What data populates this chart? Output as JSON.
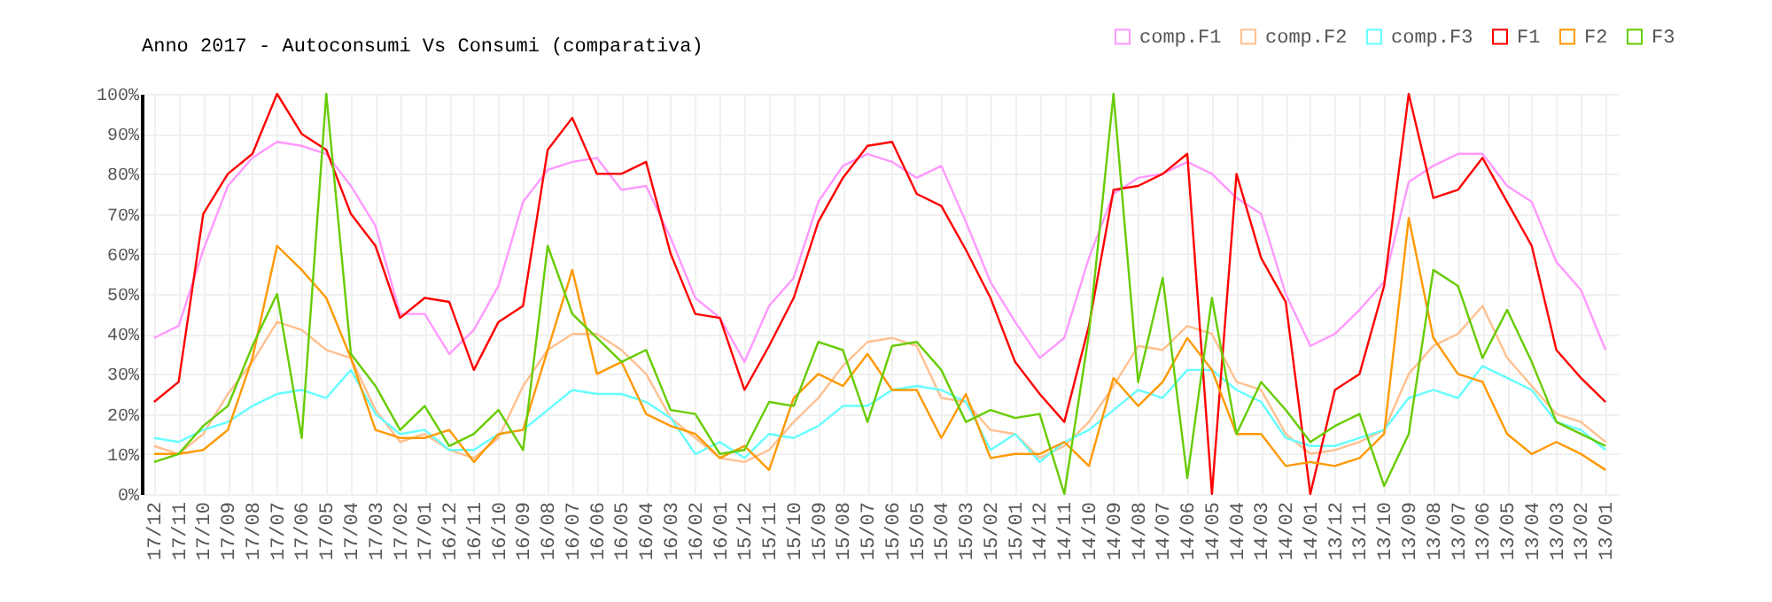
{
  "chart_data": {
    "type": "line",
    "title": "Anno 2017 - Autoconsumi Vs Consumi (comparativa)",
    "categories": [
      "17/12",
      "17/11",
      "17/10",
      "17/09",
      "17/08",
      "17/07",
      "17/06",
      "17/05",
      "17/04",
      "17/03",
      "17/02",
      "17/01",
      "16/12",
      "16/11",
      "16/10",
      "16/09",
      "16/08",
      "16/07",
      "16/06",
      "16/05",
      "16/04",
      "16/03",
      "16/02",
      "16/01",
      "15/12",
      "15/11",
      "15/10",
      "15/09",
      "15/08",
      "15/07",
      "15/06",
      "15/05",
      "15/04",
      "15/03",
      "15/02",
      "15/01",
      "14/12",
      "14/11",
      "14/10",
      "14/09",
      "14/08",
      "14/07",
      "14/06",
      "14/05",
      "14/04",
      "14/03",
      "14/02",
      "14/01",
      "13/12",
      "13/11",
      "13/10",
      "13/09",
      "13/08",
      "13/07",
      "13/06",
      "13/05",
      "13/04",
      "13/03",
      "13/02",
      "13/01"
    ],
    "series": [
      {
        "name": "comp.F1",
        "color": "#ff99ff",
        "values": [
          39,
          42,
          61,
          77,
          84,
          88,
          87,
          85,
          77,
          67,
          45,
          45,
          35,
          41,
          52,
          73,
          81,
          83,
          84,
          76,
          77,
          64,
          49,
          44,
          33,
          47,
          54,
          73,
          82,
          85,
          83,
          79,
          82,
          68,
          53,
          43,
          34,
          39,
          59,
          75,
          79,
          80,
          83,
          80,
          74,
          70,
          50,
          37,
          40,
          46,
          53,
          78,
          82,
          85,
          85,
          77,
          73,
          58,
          51,
          36
        ]
      },
      {
        "name": "comp.F2",
        "color": "#ffc090",
        "values": [
          12,
          10,
          15,
          25,
          33,
          43,
          41,
          36,
          34,
          21,
          13,
          15,
          11,
          9,
          14,
          27,
          36,
          40,
          40,
          36,
          30,
          19,
          14,
          9,
          8,
          11,
          18,
          24,
          32,
          38,
          39,
          37,
          24,
          23,
          16,
          15,
          9,
          12,
          18,
          27,
          37,
          36,
          42,
          40,
          28,
          26,
          15,
          10,
          11,
          13,
          16,
          30,
          37,
          40,
          47,
          34,
          27,
          20,
          18,
          13
        ]
      },
      {
        "name": "comp.F3",
        "color": "#66ffff",
        "values": [
          14,
          13,
          16,
          18,
          22,
          25,
          26,
          24,
          31,
          20,
          15,
          16,
          11,
          11,
          15,
          16,
          21,
          26,
          25,
          25,
          23,
          19,
          10,
          13,
          9,
          15,
          14,
          17,
          22,
          22,
          26,
          27,
          26,
          23,
          11,
          15,
          8,
          13,
          16,
          21,
          26,
          24,
          31,
          31,
          26,
          23,
          14,
          12,
          12,
          14,
          16,
          24,
          26,
          24,
          32,
          29,
          26,
          18,
          16,
          11
        ]
      },
      {
        "name": "F1",
        "color": "#ff0000",
        "values": [
          23,
          28,
          70,
          80,
          85,
          100,
          90,
          86,
          70,
          62,
          44,
          49,
          48,
          31,
          43,
          47,
          86,
          94,
          80,
          80,
          83,
          60,
          45,
          44,
          26,
          37,
          49,
          68,
          79,
          87,
          88,
          75,
          72,
          61,
          49,
          33,
          25,
          18,
          42,
          76,
          77,
          80,
          85,
          0,
          80,
          59,
          48,
          0,
          26,
          30,
          52,
          100,
          74,
          76,
          84,
          73,
          62,
          36,
          29,
          23
        ]
      },
      {
        "name": "F2",
        "color": "#ff9900",
        "values": [
          10,
          10,
          11,
          16,
          34,
          62,
          56,
          49,
          34,
          16,
          14,
          14,
          16,
          8,
          15,
          16,
          36,
          56,
          30,
          33,
          20,
          17,
          15,
          9,
          12,
          6,
          24,
          30,
          27,
          35,
          26,
          26,
          14,
          25,
          9,
          10,
          10,
          13,
          7,
          29,
          22,
          28,
          39,
          31,
          15,
          15,
          7,
          8,
          7,
          9,
          15,
          69,
          39,
          30,
          28,
          15,
          10,
          13,
          10,
          6
        ]
      },
      {
        "name": "F3",
        "color": "#66cc00",
        "values": [
          8,
          10,
          17,
          22,
          37,
          50,
          14,
          100,
          35,
          27,
          16,
          22,
          12,
          15,
          21,
          11,
          62,
          45,
          39,
          33,
          36,
          21,
          20,
          10,
          11,
          23,
          22,
          38,
          36,
          18,
          37,
          38,
          31,
          18,
          21,
          19,
          20,
          0,
          40,
          100,
          28,
          54,
          4,
          49,
          15,
          28,
          21,
          13,
          17,
          20,
          2,
          15,
          56,
          52,
          34,
          46,
          33,
          18,
          15,
          12
        ]
      }
    ],
    "ylim": [
      0,
      100
    ],
    "yticks": [
      {
        "value": 0,
        "label": "0%"
      },
      {
        "value": 10,
        "label": "10%"
      },
      {
        "value": 20,
        "label": "20%"
      },
      {
        "value": 30,
        "label": "30%"
      },
      {
        "value": 40,
        "label": "40%"
      },
      {
        "value": 50,
        "label": "50%"
      },
      {
        "value": 60,
        "label": "60%"
      },
      {
        "value": 70,
        "label": "70%"
      },
      {
        "value": 80,
        "label": "80%"
      },
      {
        "value": 90,
        "label": "90%"
      },
      {
        "value": 100,
        "label": "100%"
      }
    ],
    "grid": true,
    "legend": "top right"
  }
}
